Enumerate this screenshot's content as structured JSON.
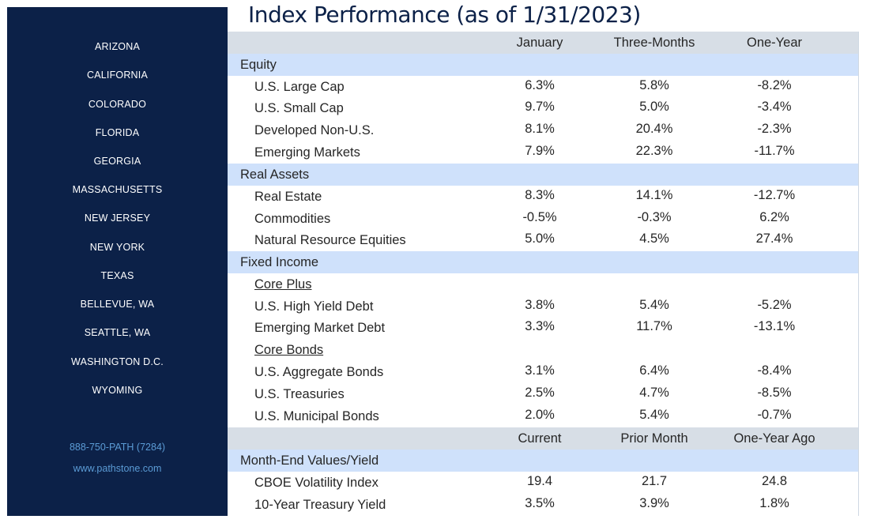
{
  "title": "Index Performance (as of 1/31/2023)",
  "sidebar": {
    "states": [
      "ARIZONA",
      "CALIFORNIA",
      "COLORADO",
      "FLORIDA",
      "GEORGIA",
      "MASSACHUSETTS",
      "NEW JERSEY",
      "NEW YORK",
      "TEXAS",
      "BELLEVUE, WA",
      "SEATTLE, WA",
      "WASHINGTON D.C.",
      "WYOMING"
    ],
    "phone": "888-750-PATH (7284)",
    "website": "www.pathstone.com"
  },
  "performance_header": {
    "col1": "January",
    "col2": "Three-Months",
    "col3": "One-Year"
  },
  "equity": {
    "title": "Equity",
    "rows": [
      {
        "name": "U.S. Large Cap",
        "jan": "6.3%",
        "three_month": "5.8%",
        "one_year": "-8.2%"
      },
      {
        "name": "U.S. Small Cap",
        "jan": "9.7%",
        "three_month": "5.0%",
        "one_year": "-3.4%"
      },
      {
        "name": "Developed Non-U.S.",
        "jan": "8.1%",
        "three_month": "20.4%",
        "one_year": "-2.3%"
      },
      {
        "name": "Emerging Markets",
        "jan": "7.9%",
        "three_month": "22.3%",
        "one_year": "-11.7%"
      }
    ]
  },
  "real_assets": {
    "title": "Real Assets",
    "rows": [
      {
        "name": "Real Estate",
        "jan": "8.3%",
        "three_month": "14.1%",
        "one_year": "-12.7%"
      },
      {
        "name": "Commodities",
        "jan": "-0.5%",
        "three_month": "-0.3%",
        "one_year": "6.2%"
      },
      {
        "name": "Natural Resource Equities",
        "jan": "5.0%",
        "three_month": "4.5%",
        "one_year": "27.4%"
      }
    ]
  },
  "fixed_income": {
    "title": "Fixed Income",
    "core_plus": {
      "title": "Core Plus",
      "rows": [
        {
          "name": "U.S. High Yield Debt",
          "jan": "3.8%",
          "three_month": "5.4%",
          "one_year": "-5.2%"
        },
        {
          "name": "Emerging Market Debt",
          "jan": "3.3%",
          "three_month": "11.7%",
          "one_year": "-13.1%"
        }
      ]
    },
    "core_bonds": {
      "title": "Core Bonds",
      "rows": [
        {
          "name": "U.S. Aggregate Bonds",
          "jan": "3.1%",
          "three_month": "6.4%",
          "one_year": "-8.4%"
        },
        {
          "name": "U.S. Treasuries",
          "jan": "2.5%",
          "three_month": "4.7%",
          "one_year": "-8.5%"
        },
        {
          "name": "U.S. Municipal Bonds",
          "jan": "2.0%",
          "three_month": "5.4%",
          "one_year": "-0.7%"
        }
      ]
    }
  },
  "values_header": {
    "col1": "Current",
    "col2": "Prior Month",
    "col3": "One-Year Ago"
  },
  "month_end": {
    "title": "Month-End Values/Yield",
    "rows": [
      {
        "name": "CBOE Volatility Index",
        "current": "19.4",
        "prior_month": "21.7",
        "one_year_ago": "24.8"
      },
      {
        "name": "10-Year Treasury Yield",
        "current": "3.5%",
        "prior_month": "3.9%",
        "one_year_ago": "1.8%"
      }
    ]
  }
}
